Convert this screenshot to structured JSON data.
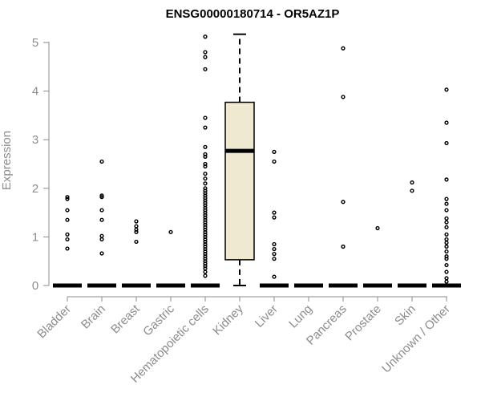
{
  "chart_data": {
    "type": "box",
    "title": "ENSG00000180714 - OR5AZ1P",
    "xlabel": "",
    "ylabel": "Expression",
    "ylim": [
      0,
      5.2
    ],
    "yticks": [
      0,
      1,
      2,
      3,
      4,
      5
    ],
    "colors": {
      "box_fill": "#efe9d2",
      "stroke": "#000000",
      "axis": "#8c8c8c"
    },
    "categories": [
      "Bladder",
      "Brain",
      "Breast",
      "Gastric",
      "Hematopoietic cells",
      "Kidney",
      "Liver",
      "Lung",
      "Pancreas",
      "Prostate",
      "Skin",
      "Unknown / Other"
    ],
    "groups": [
      {
        "name": "Bladder",
        "q1": 0,
        "median": 0,
        "q3": 0,
        "whisker_low": 0,
        "whisker_high": 0,
        "outliers": [
          1.82,
          1.78,
          1.55,
          1.35,
          1.05,
          0.95,
          0.76
        ]
      },
      {
        "name": "Brain",
        "q1": 0,
        "median": 0,
        "q3": 0,
        "whisker_low": 0,
        "whisker_high": 0,
        "outliers": [
          2.55,
          1.85,
          1.82,
          1.55,
          1.35,
          1.02,
          0.95,
          0.66
        ]
      },
      {
        "name": "Breast",
        "q1": 0,
        "median": 0,
        "q3": 0,
        "whisker_low": 0,
        "whisker_high": 0,
        "outliers": [
          1.32,
          1.22,
          1.15,
          1.1,
          0.9
        ]
      },
      {
        "name": "Gastric",
        "q1": 0,
        "median": 0,
        "q3": 0,
        "whisker_low": 0,
        "whisker_high": 0,
        "outliers": [
          1.1
        ]
      },
      {
        "name": "Hematopoietic cells",
        "q1": 0,
        "median": 0,
        "q3": 0,
        "whisker_low": 0,
        "whisker_high": 0,
        "outliers": [
          5.12,
          4.8,
          4.7,
          4.45,
          3.45,
          3.25,
          2.85,
          2.7,
          2.65,
          2.5,
          2.45,
          2.3,
          2.2,
          2.1,
          2.0,
          1.95,
          1.9,
          1.85,
          1.8,
          1.75,
          1.7,
          1.65,
          1.6,
          1.55,
          1.5,
          1.45,
          1.4,
          1.35,
          1.3,
          1.25,
          1.2,
          1.15,
          1.1,
          1.05,
          1.0,
          0.95,
          0.9,
          0.85,
          0.8,
          0.75,
          0.7,
          0.65,
          0.6,
          0.55,
          0.5,
          0.45,
          0.4,
          0.35,
          0.28,
          0.2
        ]
      },
      {
        "name": "Kidney",
        "q1": 0.53,
        "median": 2.77,
        "q3": 3.77,
        "whisker_low": 0,
        "whisker_high": 5.17,
        "outliers": []
      },
      {
        "name": "Liver",
        "q1": 0,
        "median": 0,
        "q3": 0,
        "whisker_low": 0,
        "whisker_high": 0,
        "outliers": [
          2.75,
          2.55,
          1.5,
          1.4,
          0.85,
          0.75,
          0.65,
          0.55,
          0.18
        ]
      },
      {
        "name": "Lung",
        "q1": 0,
        "median": 0,
        "q3": 0,
        "whisker_low": 0,
        "whisker_high": 0,
        "outliers": []
      },
      {
        "name": "Pancreas",
        "q1": 0,
        "median": 0,
        "q3": 0,
        "whisker_low": 0,
        "whisker_high": 0,
        "outliers": [
          4.88,
          3.88,
          1.72,
          0.8
        ]
      },
      {
        "name": "Prostate",
        "q1": 0,
        "median": 0,
        "q3": 0,
        "whisker_low": 0,
        "whisker_high": 0,
        "outliers": [
          1.18
        ]
      },
      {
        "name": "Skin",
        "q1": 0,
        "median": 0,
        "q3": 0,
        "whisker_low": 0,
        "whisker_high": 0,
        "outliers": [
          2.12,
          1.95
        ]
      },
      {
        "name": "Unknown / Other",
        "q1": 0,
        "median": 0,
        "q3": 0,
        "whisker_low": 0,
        "whisker_high": 0,
        "outliers": [
          4.03,
          3.35,
          2.93,
          2.18,
          1.78,
          1.68,
          1.55,
          1.38,
          1.3,
          1.2,
          1.05,
          0.95,
          0.88,
          0.8,
          0.7,
          0.6,
          0.55,
          0.42,
          0.28,
          0.15,
          0.08
        ]
      }
    ]
  }
}
